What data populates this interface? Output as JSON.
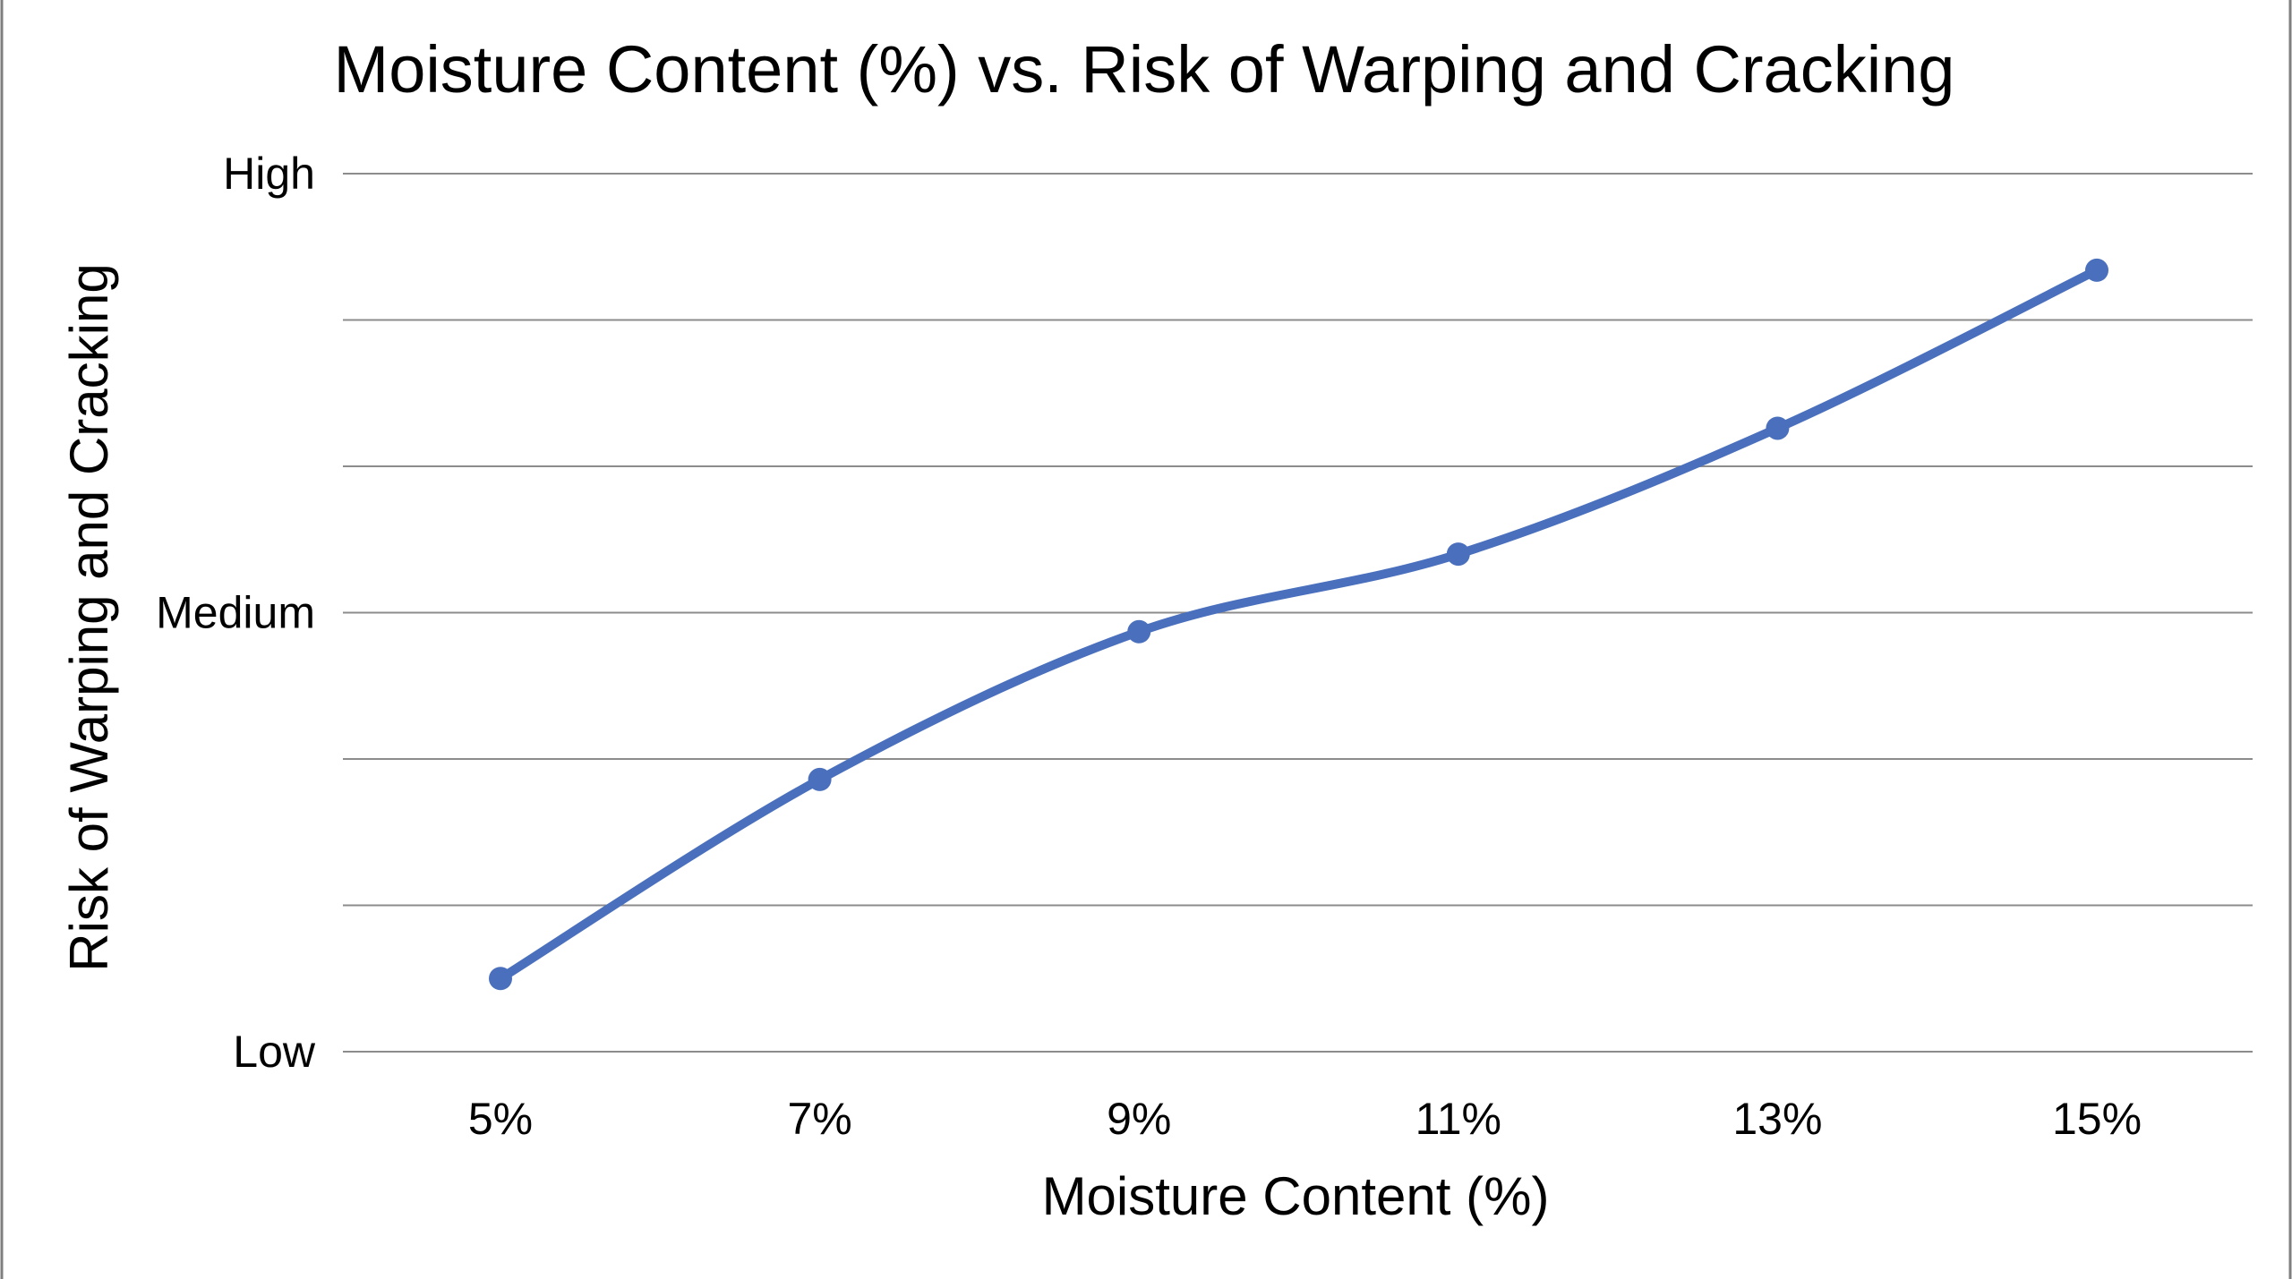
{
  "chart_data": {
    "type": "line",
    "title": "Moisture Content (%) vs. Risk of Warping and Cracking",
    "xlabel": "Moisture Content (%)",
    "ylabel": "Risk of Warping and Cracking",
    "categories": [
      "5%",
      "7%",
      "9%",
      "11%",
      "13%",
      "15%"
    ],
    "y_tick_labels": [
      {
        "value": 0,
        "label": "Low"
      },
      {
        "value": 3,
        "label": "Medium"
      },
      {
        "value": 6,
        "label": "High"
      }
    ],
    "ylim": [
      0,
      6
    ],
    "grid": true,
    "smooth": true,
    "legend": "none",
    "series": [
      {
        "values": [
          0.5,
          1.86,
          2.87,
          3.4,
          4.26,
          5.34
        ],
        "color": "#4a70bd"
      }
    ]
  },
  "frame_color": "#7f7f7f"
}
